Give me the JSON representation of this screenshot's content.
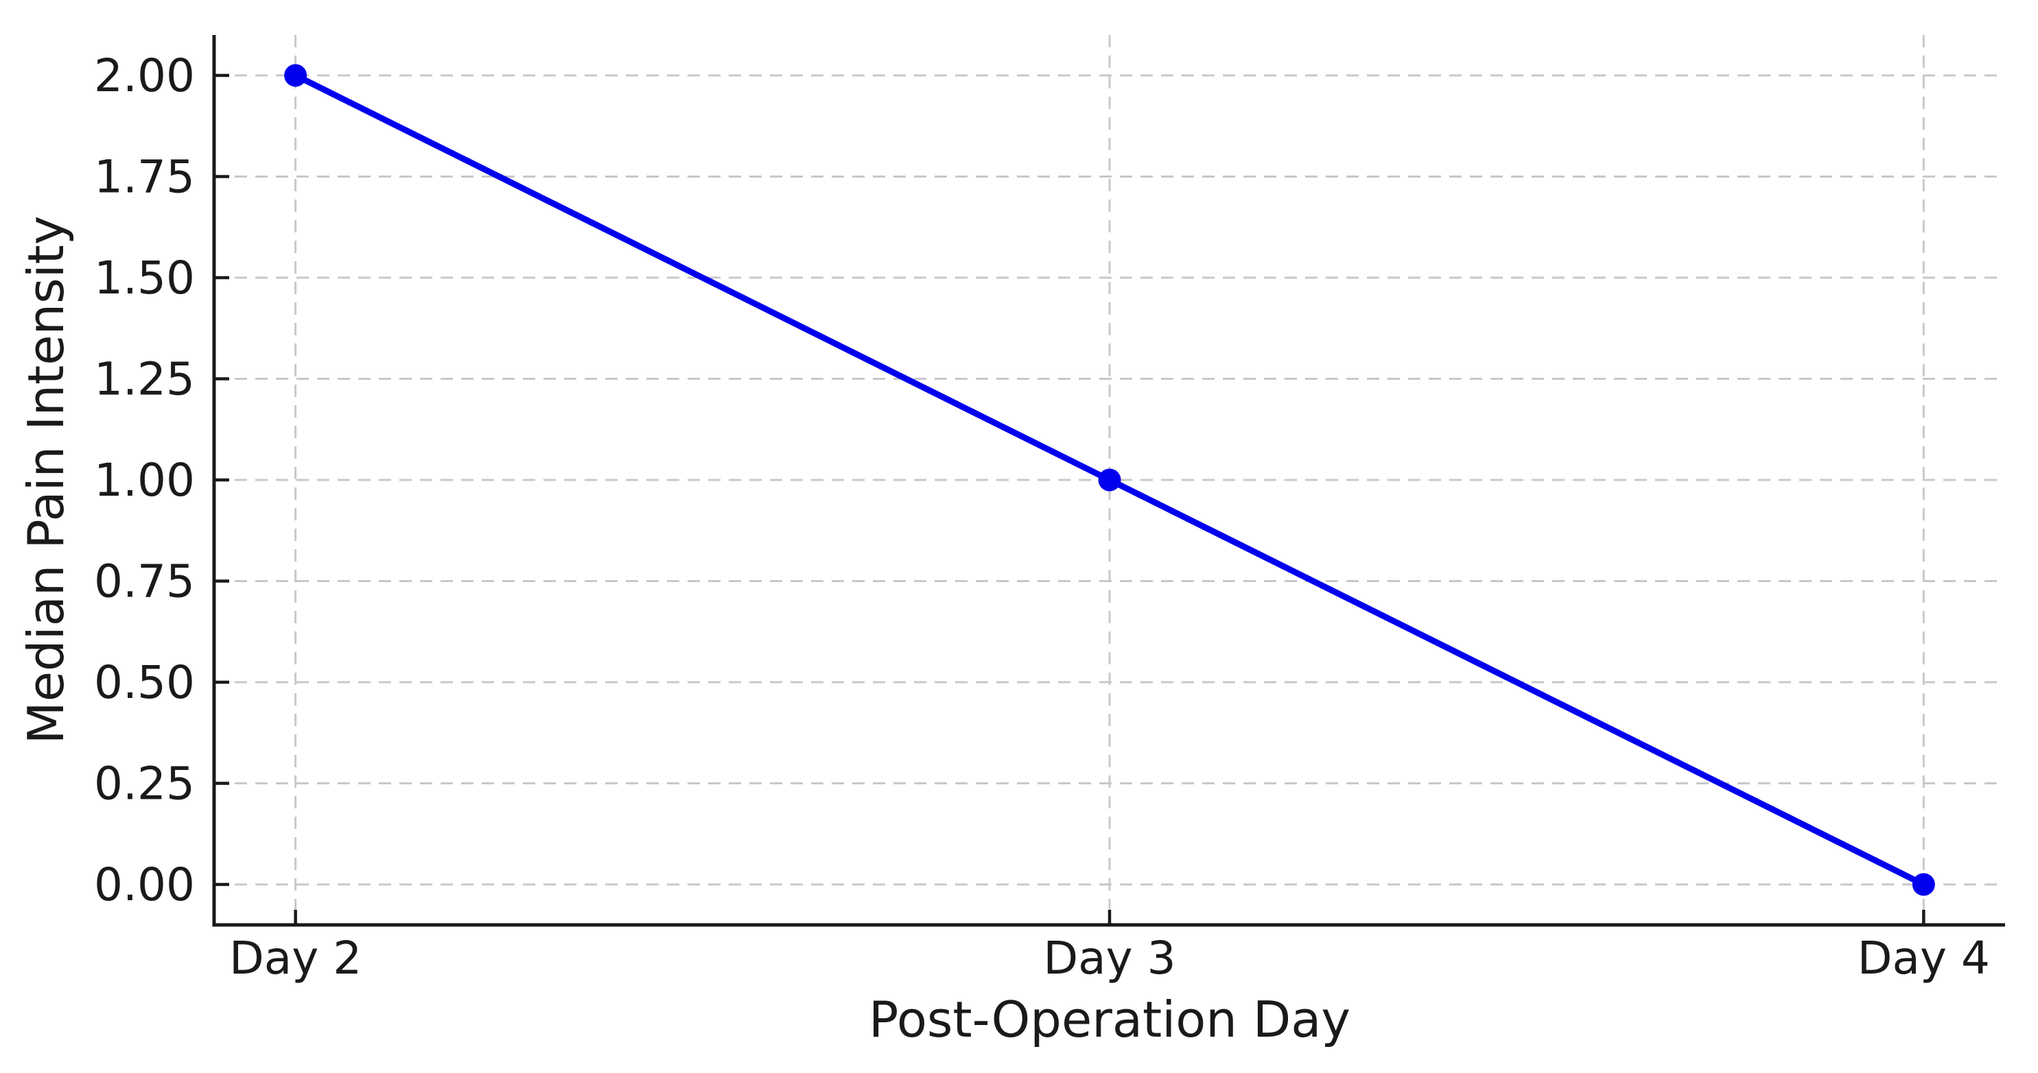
{
  "chart_data": {
    "type": "line",
    "title": "",
    "xlabel": "Post-Operation Day",
    "ylabel": "Median Pain Intensity",
    "categories": [
      "Day 2",
      "Day 3",
      "Day 4"
    ],
    "series": [
      {
        "name": "Median Pain Intensity",
        "values": [
          2.0,
          1.0,
          0.0
        ]
      }
    ],
    "yticks": [
      0.0,
      0.25,
      0.5,
      0.75,
      1.0,
      1.25,
      1.5,
      1.75,
      2.0
    ],
    "ytick_labels": [
      "0.00",
      "0.25",
      "0.50",
      "0.75",
      "1.00",
      "1.25",
      "1.50",
      "1.75",
      "2.00"
    ],
    "ylim": [
      0,
      2
    ],
    "grid": {
      "visible": true,
      "style": "dashed",
      "axes": "both"
    },
    "legend": {
      "visible": false
    },
    "marker": "circle",
    "line_style": "solid",
    "colors": {
      "line": "#0000ee",
      "marker": "#0000ee",
      "grid": "#c8c8c8",
      "axis": "#1a1a1a",
      "text": "#1a1a1a",
      "background": "#ffffff"
    }
  }
}
